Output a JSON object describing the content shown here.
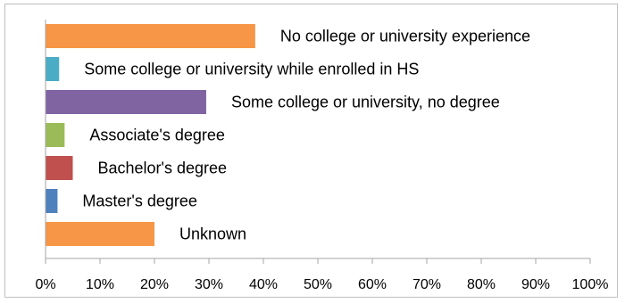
{
  "chart_data": {
    "type": "bar",
    "orientation": "horizontal",
    "categories": [
      "No college or university experience",
      "Some college or university while enrolled in HS",
      "Some college or university, no degree",
      "Associate's degree",
      "Bachelor's degree",
      "Master's degree",
      "Unknown"
    ],
    "values": [
      38.5,
      2.5,
      29.5,
      3.5,
      5.0,
      2.2,
      20.0
    ],
    "colors": [
      "#F79646",
      "#4BACC6",
      "#8064A2",
      "#9BBB59",
      "#C0504D",
      "#4F81BD",
      "#F79646"
    ],
    "xlim": [
      0,
      100
    ],
    "xticks": [
      "0%",
      "10%",
      "20%",
      "30%",
      "40%",
      "50%",
      "60%",
      "70%",
      "80%",
      "90%",
      "100%"
    ],
    "title": "",
    "xlabel": "",
    "ylabel": "",
    "legend": "none",
    "grid": false
  }
}
